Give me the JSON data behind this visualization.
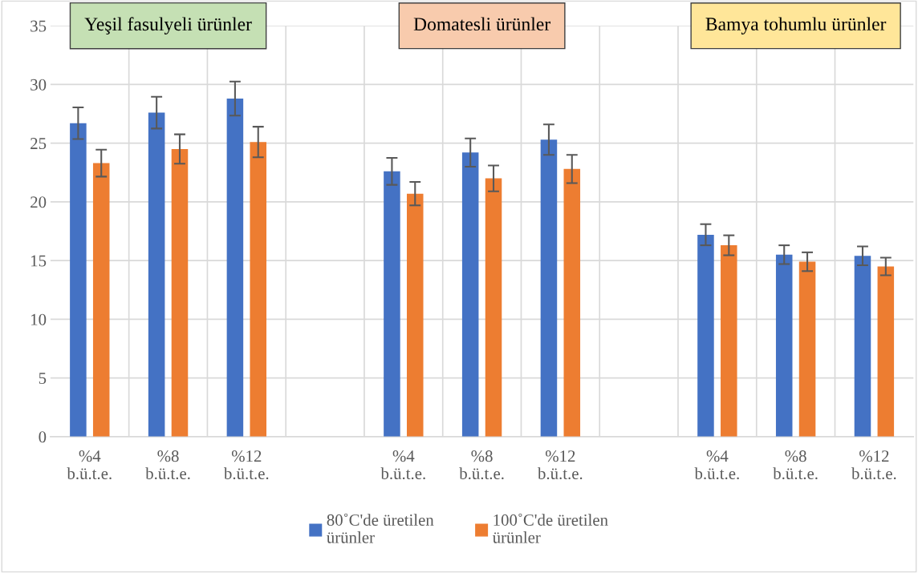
{
  "chart_data": {
    "type": "bar",
    "categories": [
      "%4\nb.ü.t.e.",
      "%8\nb.ü.t.e.",
      "%12\nb.ü.t.e.",
      null,
      "%4\nb.ü.t.e.",
      "%8\nb.ü.t.e.",
      "%12\nb.ü.t.e.",
      null,
      "%4\nb.ü.t.e.",
      "%8\nb.ü.t.e.",
      "%12\nb.ü.t.e."
    ],
    "series": [
      {
        "name": "80˚C'de üretilen\nürünler",
        "color": "#4472c4",
        "values": [
          26.7,
          27.6,
          28.8,
          null,
          22.6,
          24.2,
          25.3,
          null,
          17.2,
          15.5,
          15.4
        ],
        "errors": [
          1.35,
          1.35,
          1.45,
          null,
          1.15,
          1.2,
          1.3,
          null,
          0.9,
          0.8,
          0.8
        ]
      },
      {
        "name": "100˚C'de üretilen\nürünler",
        "color": "#ed7d31",
        "values": [
          23.3,
          24.5,
          25.1,
          null,
          20.7,
          22.0,
          22.8,
          null,
          16.3,
          14.9,
          14.5
        ],
        "errors": [
          1.15,
          1.25,
          1.3,
          null,
          1.0,
          1.1,
          1.2,
          null,
          0.85,
          0.8,
          0.75
        ]
      }
    ],
    "annotations": [
      "Yeşil fasulyeli ürünler",
      "Domatesli ürünler",
      "Bamya tohumlu ürünler"
    ],
    "ylim": [
      0,
      35
    ],
    "yticks": [
      0,
      5,
      10,
      15,
      20,
      25,
      30,
      35
    ],
    "grid": true,
    "legend": "bottom"
  }
}
